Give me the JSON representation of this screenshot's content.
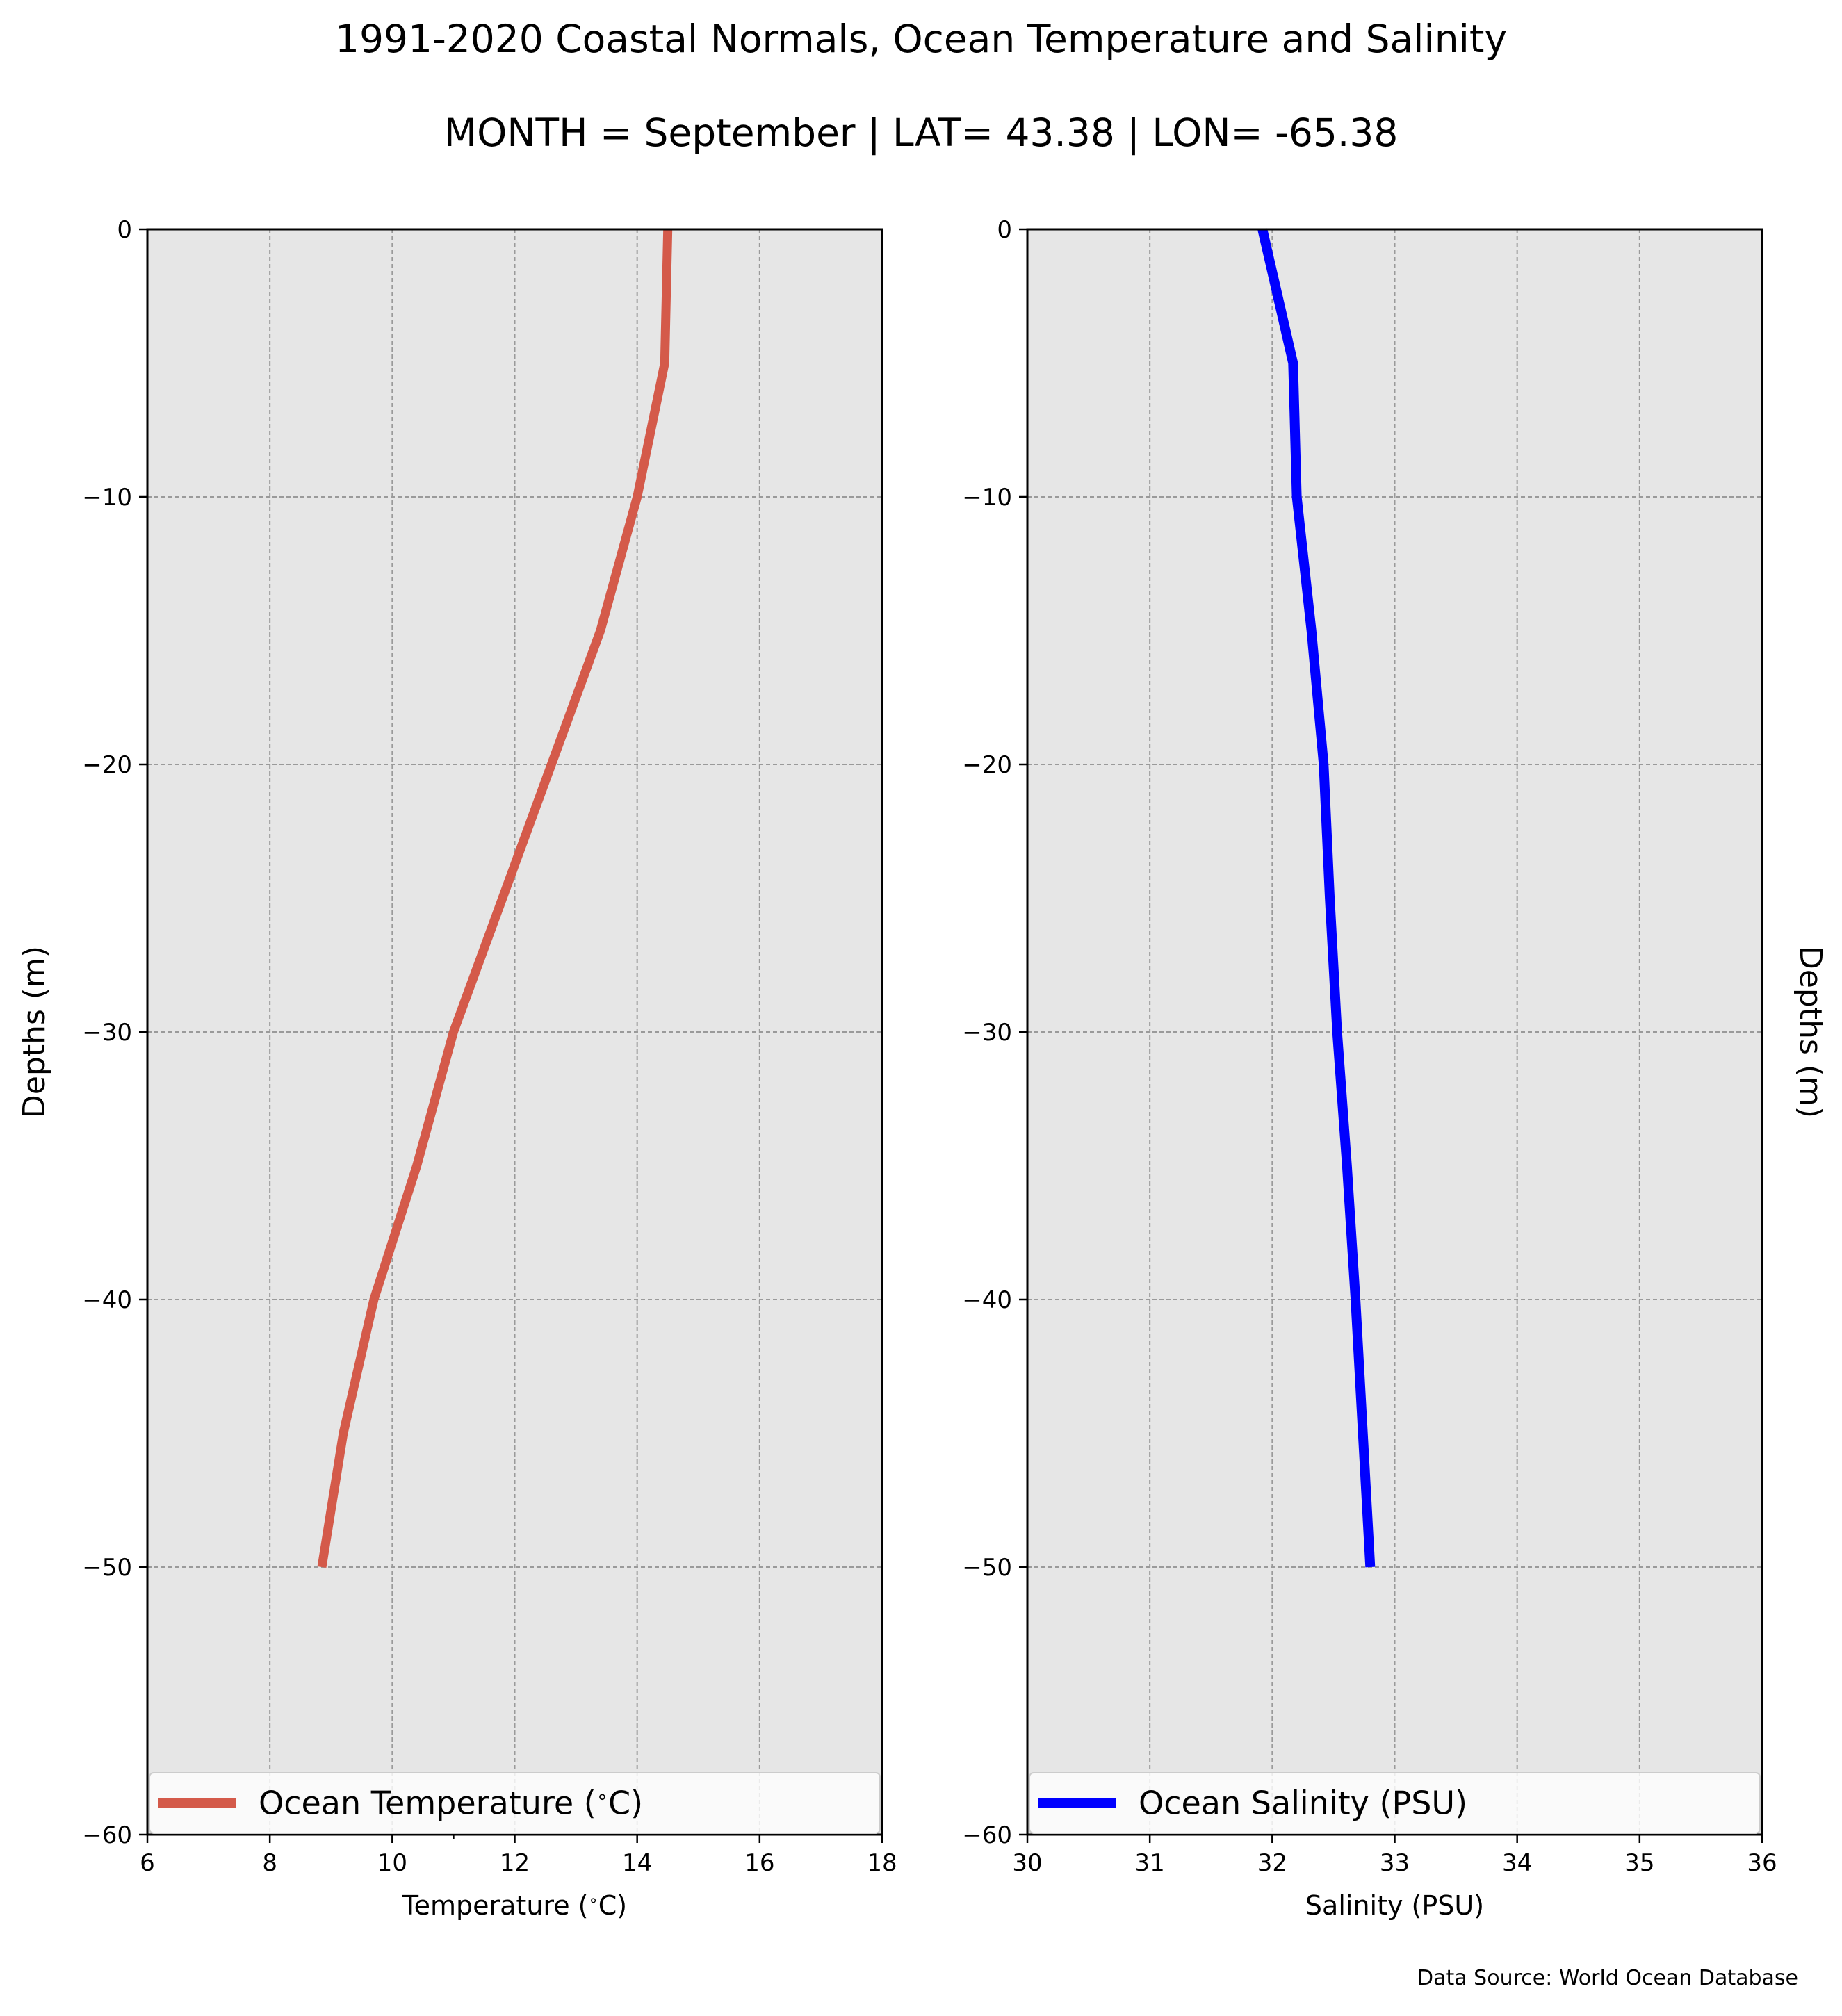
{
  "title_line1": "1991-2020 Coastal Normals, Ocean Temperature and Salinity",
  "title_line2": "MONTH = September | LAT= 43.38 | LON= -65.38",
  "source_note": "Data Source: World Ocean Database",
  "chart_data": [
    {
      "type": "line",
      "xlabel": "Temperature ($^\\circ$C)",
      "ylabel": "Depths (m)",
      "ylabel_side": "left",
      "xlim": [
        6,
        18
      ],
      "ylim": [
        -60,
        0
      ],
      "xticks": [
        "6",
        "8",
        "10",
        "12",
        "14",
        "16",
        "18"
      ],
      "yticks": [
        "0",
        "−10",
        "−20",
        "−30",
        "−40",
        "−50",
        "−60"
      ],
      "grid": true,
      "legend_position": "bottom",
      "line_color": "#d45a4a",
      "series": [
        {
          "name": "Ocean Temperature ($^\\circ$C)",
          "x": [
            14.5,
            14.45,
            14.0,
            13.4,
            12.6,
            11.8,
            11.0,
            10.4,
            9.7,
            9.2,
            8.85
          ],
          "y": [
            0,
            -5,
            -10,
            -15,
            -20,
            -25,
            -30,
            -35,
            -40,
            -45,
            -50
          ]
        }
      ]
    },
    {
      "type": "line",
      "xlabel": "Salinity (PSU)",
      "ylabel": "Depths (m)",
      "ylabel_side": "right",
      "xlim": [
        30,
        36
      ],
      "ylim": [
        -60,
        0
      ],
      "xticks": [
        "30",
        "31",
        "32",
        "33",
        "34",
        "35",
        "36"
      ],
      "yticks": [
        "0",
        "−10",
        "−20",
        "−30",
        "−40",
        "−50",
        "−60"
      ],
      "grid": true,
      "legend_position": "bottom",
      "line_color": "#0000ff",
      "series": [
        {
          "name": "Ocean Salinity (PSU)",
          "x": [
            31.92,
            32.17,
            32.2,
            32.32,
            32.42,
            32.47,
            32.53,
            32.61,
            32.68,
            32.74,
            32.8
          ],
          "y": [
            0,
            -5,
            -10,
            -15,
            -20,
            -25,
            -30,
            -35,
            -40,
            -45,
            -50
          ]
        }
      ]
    }
  ]
}
